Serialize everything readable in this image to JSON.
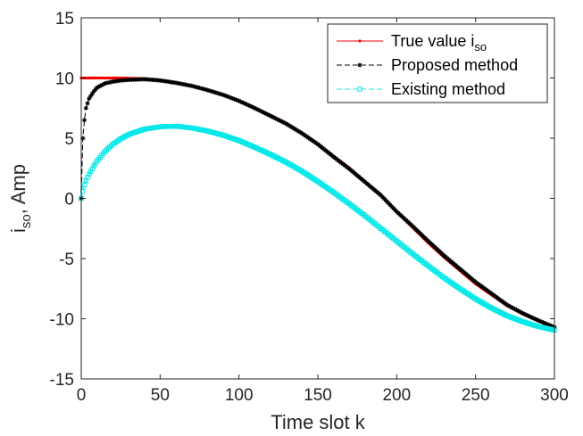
{
  "chart_data": {
    "type": "line",
    "xlabel": "Time slot k",
    "ylabel": "i",
    "ylabel_subscript": "so",
    "ylabel_suffix": ", Amp",
    "xlim": [
      0,
      300
    ],
    "ylim": [
      -15,
      15
    ],
    "xticks": [
      0,
      50,
      100,
      150,
      200,
      250,
      300
    ],
    "yticks": [
      -15,
      -10,
      -5,
      0,
      5,
      10,
      15
    ],
    "grid": false,
    "legend_position": "top-right",
    "x": [
      0,
      1,
      2,
      3,
      5,
      8,
      10,
      15,
      20,
      25,
      30,
      40,
      50,
      60,
      70,
      80,
      90,
      100,
      110,
      120,
      130,
      140,
      150,
      160,
      170,
      180,
      190,
      200,
      210,
      220,
      230,
      240,
      250,
      260,
      270,
      280,
      290,
      300
    ],
    "series": [
      {
        "name": "True value i",
        "name_subscript": "so",
        "color": "#ff0000",
        "line_style": "solid",
        "marker": "dot",
        "values": [
          10.0,
          10.0,
          10.0,
          10.0,
          10.0,
          10.0,
          10.0,
          10.0,
          10.0,
          10.0,
          9.98,
          9.95,
          9.8,
          9.6,
          9.35,
          9.0,
          8.6,
          8.1,
          7.5,
          6.9,
          6.2,
          5.4,
          4.5,
          3.5,
          2.5,
          1.4,
          0.3,
          -1.1,
          -2.4,
          -3.7,
          -4.9,
          -6.0,
          -7.1,
          -8.0,
          -8.9,
          -9.6,
          -10.2,
          -10.7
        ]
      },
      {
        "name": "Proposed method",
        "color": "#000000",
        "line_style": "dashed",
        "marker": "star",
        "values": [
          0.0,
          5.0,
          6.5,
          7.5,
          8.3,
          8.9,
          9.2,
          9.55,
          9.7,
          9.8,
          9.85,
          9.9,
          9.8,
          9.6,
          9.35,
          9.0,
          8.6,
          8.1,
          7.5,
          6.85,
          6.2,
          5.4,
          4.5,
          3.45,
          2.45,
          1.35,
          0.25,
          -1.1,
          -2.3,
          -3.55,
          -4.75,
          -5.85,
          -6.95,
          -7.9,
          -8.85,
          -9.55,
          -10.15,
          -10.7
        ]
      },
      {
        "name": "Existing method",
        "color": "#00e8e8",
        "line_style": "dashed",
        "marker": "square",
        "values": [
          0.0,
          0.6,
          1.1,
          1.5,
          2.0,
          2.7,
          3.1,
          3.9,
          4.5,
          4.95,
          5.3,
          5.75,
          5.95,
          6.0,
          5.85,
          5.6,
          5.25,
          4.8,
          4.25,
          3.65,
          3.0,
          2.25,
          1.4,
          0.5,
          -0.45,
          -1.45,
          -2.5,
          -3.55,
          -4.6,
          -5.6,
          -6.6,
          -7.5,
          -8.35,
          -9.1,
          -9.75,
          -10.25,
          -10.65,
          -10.95
        ]
      }
    ]
  }
}
